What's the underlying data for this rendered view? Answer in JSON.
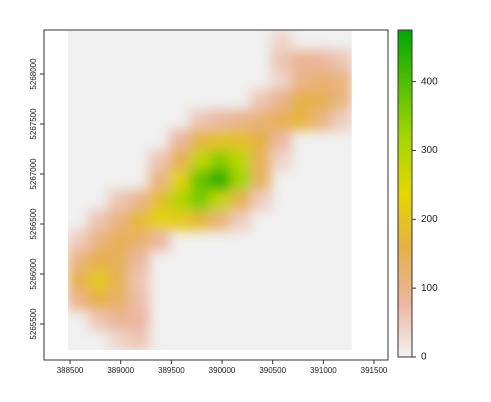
{
  "chart_data": {
    "type": "raster",
    "x": [
      388580,
      388780,
      388980,
      389180,
      389380,
      389580,
      389780,
      389980,
      390180,
      390380,
      390580,
      390780,
      390980,
      391180
    ],
    "y": [
      5268340,
      5268140,
      5267940,
      5267740,
      5267540,
      5267340,
      5267140,
      5266940,
      5266740,
      5266540,
      5266340,
      5266140,
      5265940,
      5265740,
      5265540,
      5265340
    ],
    "values": [
      [
        null,
        null,
        null,
        null,
        null,
        null,
        null,
        null,
        null,
        null,
        40,
        null,
        null,
        null
      ],
      [
        null,
        null,
        null,
        null,
        null,
        null,
        null,
        null,
        null,
        null,
        60,
        90,
        80,
        60
      ],
      [
        null,
        null,
        null,
        null,
        null,
        null,
        null,
        null,
        null,
        null,
        40,
        100,
        120,
        110
      ],
      [
        null,
        null,
        null,
        null,
        null,
        null,
        null,
        null,
        null,
        60,
        100,
        160,
        150,
        110
      ],
      [
        null,
        null,
        null,
        null,
        null,
        null,
        60,
        80,
        100,
        120,
        150,
        170,
        110,
        50
      ],
      [
        null,
        null,
        null,
        null,
        null,
        80,
        170,
        200,
        190,
        160,
        80,
        null,
        null,
        null
      ],
      [
        null,
        null,
        null,
        null,
        60,
        150,
        280,
        350,
        290,
        150,
        40,
        null,
        null,
        null
      ],
      [
        null,
        null,
        null,
        null,
        110,
        230,
        380,
        450,
        320,
        140,
        null,
        null,
        null,
        null
      ],
      [
        null,
        null,
        60,
        100,
        190,
        300,
        360,
        280,
        160,
        50,
        null,
        null,
        null,
        null
      ],
      [
        null,
        60,
        110,
        180,
        230,
        210,
        180,
        120,
        50,
        null,
        null,
        null,
        null,
        null
      ],
      [
        50,
        110,
        150,
        130,
        80,
        null,
        null,
        null,
        null,
        null,
        null,
        null,
        null,
        null
      ],
      [
        110,
        160,
        140,
        80,
        null,
        null,
        null,
        null,
        null,
        null,
        null,
        null,
        null,
        null
      ],
      [
        150,
        210,
        150,
        60,
        null,
        null,
        null,
        null,
        null,
        null,
        null,
        null,
        null,
        null
      ],
      [
        100,
        160,
        130,
        70,
        null,
        null,
        null,
        null,
        null,
        null,
        null,
        null,
        null,
        null
      ],
      [
        null,
        60,
        90,
        80,
        null,
        null,
        null,
        null,
        null,
        null,
        null,
        null,
        null,
        null
      ],
      [
        null,
        null,
        40,
        60,
        null,
        null,
        null,
        null,
        null,
        null,
        null,
        null,
        null,
        null
      ]
    ],
    "na_color": "#f0f0f0",
    "colors": [
      "#f2f2f2",
      "#ebb6a0",
      "#e6b04a",
      "#e4d600",
      "#a6d600",
      "#52c000",
      "#00a600"
    ],
    "zlim": [
      0,
      475
    ],
    "zticks": [
      0,
      100,
      200,
      300,
      400
    ],
    "xlim": [
      388243,
      391638
    ],
    "ylim": [
      5265140,
      5268440
    ],
    "xticks": [
      388500,
      389000,
      389500,
      390000,
      390500,
      391000,
      391500
    ],
    "yticks": [
      5265500,
      5266000,
      5266500,
      5267000,
      5267500,
      5268000
    ]
  }
}
